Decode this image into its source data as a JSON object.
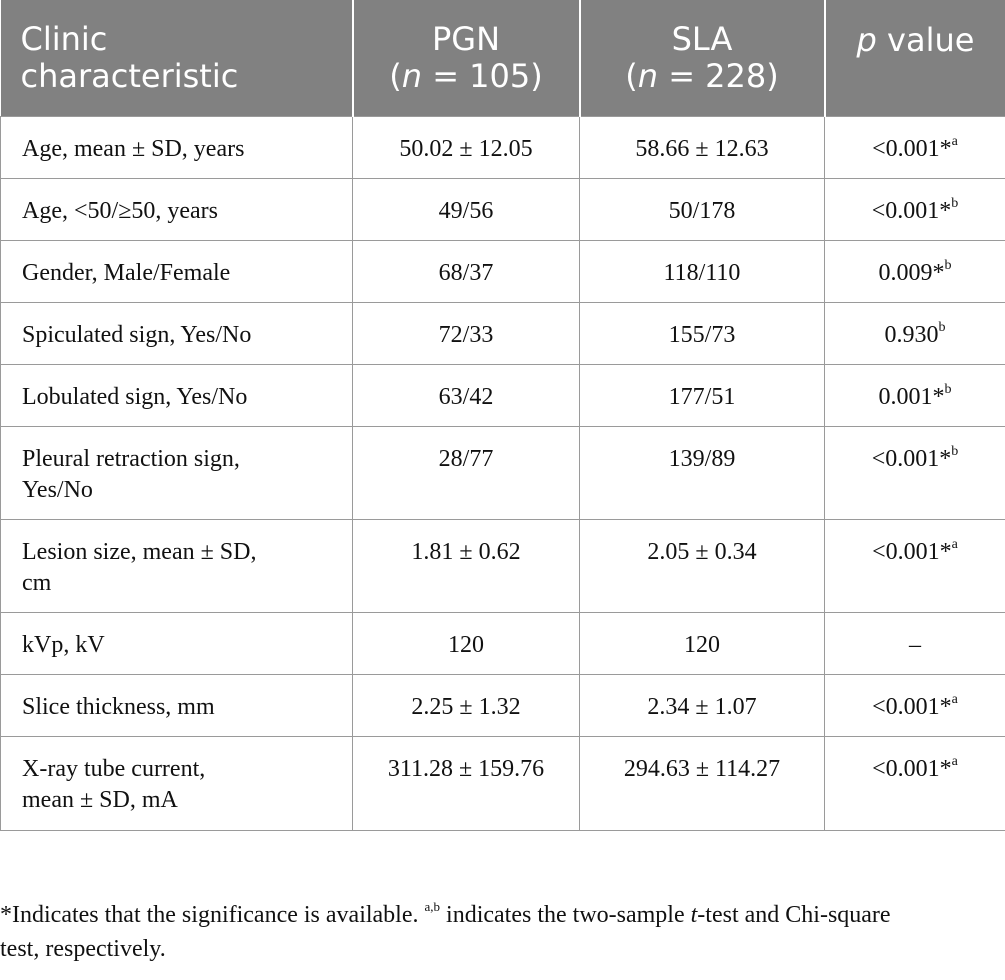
{
  "table": {
    "headers": [
      {
        "line1": "Clinic",
        "line2": "characteristic"
      },
      {
        "line1": "PGN",
        "line2_pre": "(",
        "line2_italic": "n",
        "line2_post": " = 105)"
      },
      {
        "line1": "SLA",
        "line2_pre": "(",
        "line2_italic": "n",
        "line2_post": " = 228)"
      },
      {
        "line1_italic": "p",
        "line1_post": " value"
      }
    ],
    "rows": [
      {
        "label": "Age, mean ± SD, years",
        "pgn": "50.02 ± 12.05",
        "sla": "58.66 ± 12.63",
        "p": "<0.001*",
        "p_sup": "a"
      },
      {
        "label": "Age, <50/≥50, years",
        "pgn": "49/56",
        "sla": "50/178",
        "p": "<0.001*",
        "p_sup": "b"
      },
      {
        "label": "Gender, Male/Female",
        "pgn": "68/37",
        "sla": "118/110",
        "p": "0.009*",
        "p_sup": "b"
      },
      {
        "label": "Spiculated sign, Yes/No",
        "pgn": "72/33",
        "sla": "155/73",
        "p": "0.930",
        "p_sup": "b"
      },
      {
        "label": "Lobulated sign, Yes/No",
        "pgn": "63/42",
        "sla": "177/51",
        "p": "0.001*",
        "p_sup": "b"
      },
      {
        "label_l1": "Pleural retraction sign,",
        "label_l2": "Yes/No",
        "pgn": "28/77",
        "sla": "139/89",
        "p": "<0.001*",
        "p_sup": "b"
      },
      {
        "label_l1": "Lesion size, mean ± SD,",
        "label_l2": "cm",
        "pgn": "1.81 ± 0.62",
        "sla": "2.05 ± 0.34",
        "p": "<0.001*",
        "p_sup": "a"
      },
      {
        "label": "kVp, kV",
        "pgn": "120",
        "sla": "120",
        "p": "–",
        "p_sup": ""
      },
      {
        "label": "Slice thickness, mm",
        "pgn": "2.25 ± 1.32",
        "sla": "2.34 ± 1.07",
        "p": "<0.001*",
        "p_sup": "a"
      },
      {
        "label_l1": "X-ray tube current,",
        "label_l2": "mean ± SD, mA",
        "pgn": "311.28 ± 159.76",
        "sla": "294.63 ± 114.27",
        "p": "<0.001*",
        "p_sup": "a"
      }
    ]
  },
  "footnote": {
    "part1": "*Indicates that the significance is available. ",
    "sup": "a,b",
    "part2": " indicates the two-sample ",
    "italic": "t",
    "part3": "-test and Chi-square",
    "line2": "test, respectively."
  }
}
